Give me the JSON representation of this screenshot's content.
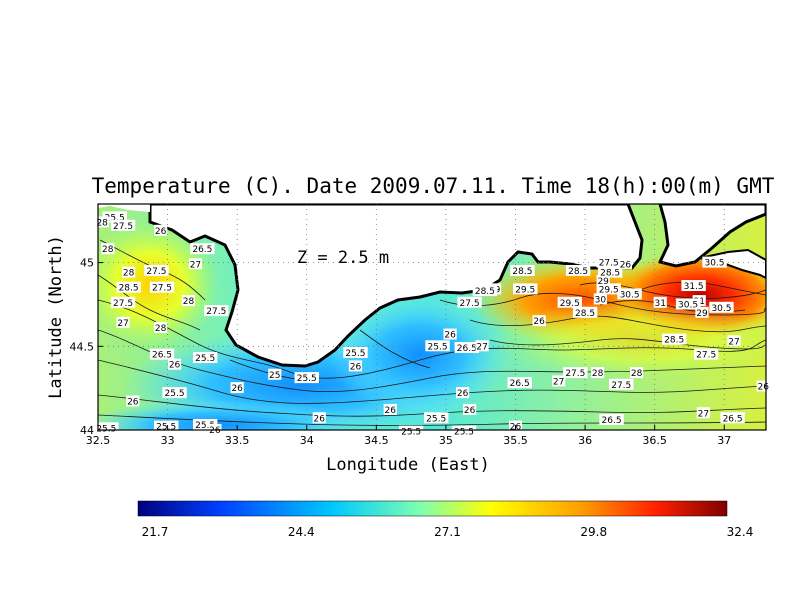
{
  "map": {
    "title": "Temperature (C). Date 2009.07.11. Time 18(h):00(m) GMT",
    "depth_label": "Z = 2.5 m",
    "x_axis_label": "Longitude (East)",
    "y_axis_label": "Latitude (North)",
    "lon_range": [
      32.5,
      37.3
    ],
    "lat_range": [
      44.0,
      45.35
    ],
    "x_ticks": [
      "32.5",
      "33",
      "33.5",
      "34",
      "34.5",
      "35",
      "35.5",
      "36",
      "36.5",
      "37"
    ],
    "x_tick_values": [
      32.5,
      33,
      33.5,
      34,
      34.5,
      35,
      35.5,
      36,
      36.5,
      37
    ],
    "y_ticks": [
      "44",
      "44.5",
      "45"
    ],
    "y_tick_values": [
      44,
      44.5,
      45
    ],
    "grid": "dotted",
    "colorbar": {
      "ticks": [
        "21.7",
        "24.4",
        "27.1",
        "29.8",
        "32.4"
      ],
      "min": 21.7,
      "max": 32.4,
      "colors": [
        "#00007f",
        "#0040ff",
        "#00c8ff",
        "#7fffaf",
        "#ffff00",
        "#ffa000",
        "#ff2000",
        "#7f0000"
      ]
    },
    "contour_labels": [
      {
        "text": "25.5",
        "lon": 32.62,
        "lat": 45.27
      },
      {
        "text": "28",
        "lon": 32.53,
        "lat": 45.24
      },
      {
        "text": "27.5",
        "lon": 32.68,
        "lat": 45.22
      },
      {
        "text": "26",
        "lon": 32.95,
        "lat": 45.19
      },
      {
        "text": "26.5",
        "lon": 33.25,
        "lat": 45.08
      },
      {
        "text": "28",
        "lon": 32.57,
        "lat": 45.08
      },
      {
        "text": "27",
        "lon": 33.2,
        "lat": 44.99
      },
      {
        "text": "28",
        "lon": 32.72,
        "lat": 44.94
      },
      {
        "text": "27.5",
        "lon": 32.92,
        "lat": 44.95
      },
      {
        "text": "28.5",
        "lon": 32.72,
        "lat": 44.85
      },
      {
        "text": "27.5",
        "lon": 32.96,
        "lat": 44.85
      },
      {
        "text": "27.5",
        "lon": 32.68,
        "lat": 44.76
      },
      {
        "text": "28",
        "lon": 33.15,
        "lat": 44.77
      },
      {
        "text": "27.5",
        "lon": 33.35,
        "lat": 44.71
      },
      {
        "text": "27",
        "lon": 32.68,
        "lat": 44.64
      },
      {
        "text": "28",
        "lon": 32.95,
        "lat": 44.61
      },
      {
        "text": "26.5",
        "lon": 32.96,
        "lat": 44.45
      },
      {
        "text": "26",
        "lon": 33.05,
        "lat": 44.39
      },
      {
        "text": "25.5",
        "lon": 33.27,
        "lat": 44.43
      },
      {
        "text": "25",
        "lon": 33.77,
        "lat": 44.33
      },
      {
        "text": "25.5",
        "lon": 34.0,
        "lat": 44.31
      },
      {
        "text": "26",
        "lon": 33.5,
        "lat": 44.25
      },
      {
        "text": "25.5",
        "lon": 33.05,
        "lat": 44.22
      },
      {
        "text": "26",
        "lon": 32.75,
        "lat": 44.17
      },
      {
        "text": "25.5",
        "lon": 32.99,
        "lat": 44.02
      },
      {
        "text": "25.5",
        "lon": 33.27,
        "lat": 44.03
      },
      {
        "text": "26",
        "lon": 33.34,
        "lat": 44.0
      },
      {
        "text": "25.5",
        "lon": 32.56,
        "lat": 44.01
      },
      {
        "text": "25.5",
        "lon": 34.35,
        "lat": 44.46
      },
      {
        "text": "26",
        "lon": 34.35,
        "lat": 44.38
      },
      {
        "text": "25.5",
        "lon": 34.94,
        "lat": 44.5
      },
      {
        "text": "26",
        "lon": 35.03,
        "lat": 44.57
      },
      {
        "text": "26.5",
        "lon": 35.15,
        "lat": 44.49
      },
      {
        "text": "27",
        "lon": 35.26,
        "lat": 44.5
      },
      {
        "text": "26",
        "lon": 35.12,
        "lat": 44.22
      },
      {
        "text": "26",
        "lon": 34.6,
        "lat": 44.12
      },
      {
        "text": "26",
        "lon": 34.09,
        "lat": 44.07
      },
      {
        "text": "25.5",
        "lon": 34.93,
        "lat": 44.07
      },
      {
        "text": "26",
        "lon": 35.17,
        "lat": 44.12
      },
      {
        "text": "25.5",
        "lon": 34.75,
        "lat": 43.99
      },
      {
        "text": "25.5",
        "lon": 35.13,
        "lat": 43.99
      },
      {
        "text": "26",
        "lon": 35.5,
        "lat": 44.02
      },
      {
        "text": "26.5",
        "lon": 35.53,
        "lat": 44.28
      },
      {
        "text": "27",
        "lon": 35.81,
        "lat": 44.29
      },
      {
        "text": "26",
        "lon": 35.67,
        "lat": 44.65
      },
      {
        "text": "27.5",
        "lon": 35.93,
        "lat": 44.34
      },
      {
        "text": "28",
        "lon": 36.09,
        "lat": 44.34
      },
      {
        "text": "28",
        "lon": 36.37,
        "lat": 44.34
      },
      {
        "text": "27.5",
        "lon": 36.26,
        "lat": 44.27
      },
      {
        "text": "26.5",
        "lon": 36.19,
        "lat": 44.06
      },
      {
        "text": "27",
        "lon": 36.85,
        "lat": 44.1
      },
      {
        "text": "26.5",
        "lon": 37.06,
        "lat": 44.07
      },
      {
        "text": "26",
        "lon": 37.28,
        "lat": 44.26
      },
      {
        "text": "27",
        "lon": 37.07,
        "lat": 44.53
      },
      {
        "text": "27.5",
        "lon": 36.87,
        "lat": 44.45
      },
      {
        "text": "28.5",
        "lon": 36.64,
        "lat": 44.54
      },
      {
        "text": "28.5",
        "lon": 35.95,
        "lat": 44.95
      },
      {
        "text": "29",
        "lon": 35.35,
        "lat": 44.84
      },
      {
        "text": "28.5",
        "lon": 35.28,
        "lat": 44.83
      },
      {
        "text": "29.5",
        "lon": 35.57,
        "lat": 44.84
      },
      {
        "text": "28.5",
        "lon": 35.55,
        "lat": 44.95
      },
      {
        "text": "27.5",
        "lon": 35.17,
        "lat": 44.76
      },
      {
        "text": "29.5",
        "lon": 35.89,
        "lat": 44.76
      },
      {
        "text": "30",
        "lon": 36.11,
        "lat": 44.78
      },
      {
        "text": "30.5",
        "lon": 36.32,
        "lat": 44.81
      },
      {
        "text": "31",
        "lon": 36.54,
        "lat": 44.76
      },
      {
        "text": "29.5",
        "lon": 36.17,
        "lat": 44.84
      },
      {
        "text": "29",
        "lon": 36.13,
        "lat": 44.89
      },
      {
        "text": "28.5",
        "lon": 36.18,
        "lat": 44.94
      },
      {
        "text": "27.5",
        "lon": 36.17,
        "lat": 45.0
      },
      {
        "text": "26",
        "lon": 36.29,
        "lat": 44.99
      },
      {
        "text": "28.5",
        "lon": 36.0,
        "lat": 44.7
      },
      {
        "text": "30.5",
        "lon": 36.93,
        "lat": 45.0
      },
      {
        "text": "31.5",
        "lon": 36.78,
        "lat": 44.86
      },
      {
        "text": "31",
        "lon": 36.82,
        "lat": 44.77
      },
      {
        "text": "30.5",
        "lon": 36.74,
        "lat": 44.75
      },
      {
        "text": "29",
        "lon": 36.84,
        "lat": 44.7
      },
      {
        "text": "30.5",
        "lon": 36.98,
        "lat": 44.73
      }
    ]
  }
}
